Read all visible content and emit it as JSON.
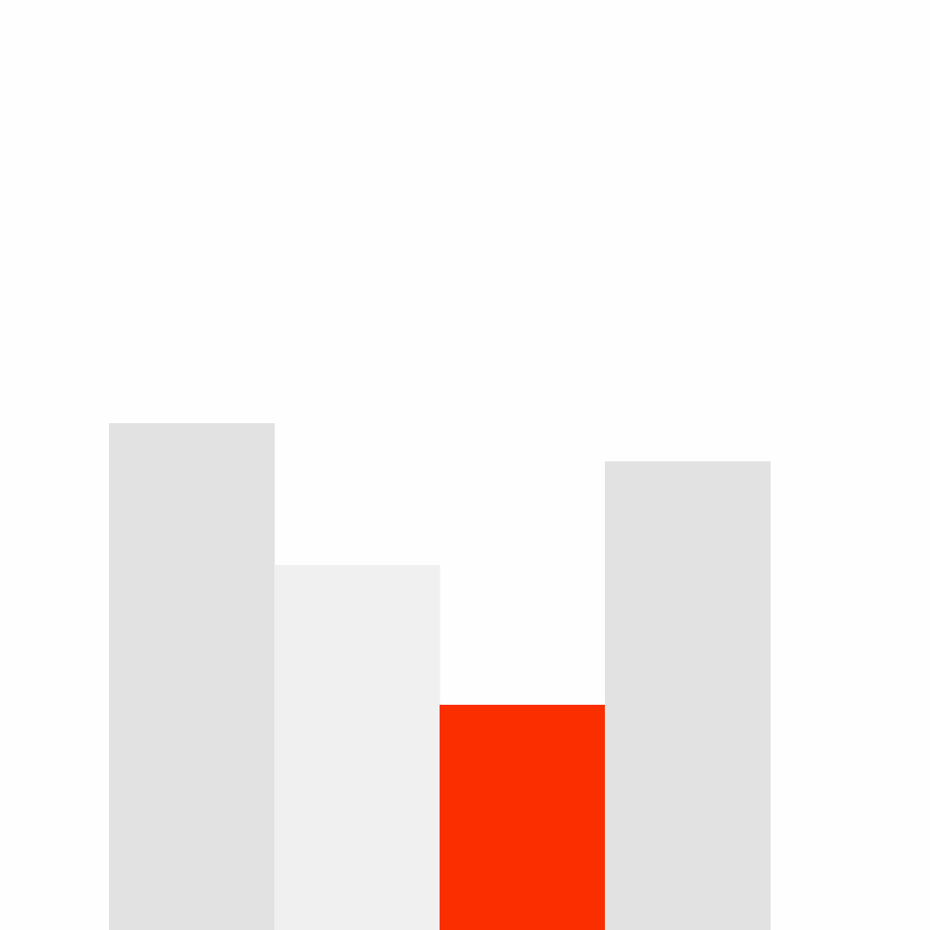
{
  "chart_data": {
    "type": "bar",
    "categories": [
      "",
      "",
      "",
      ""
    ],
    "values": [
      558,
      402,
      248,
      516
    ],
    "ylim": [
      0,
      1024
    ],
    "colors": [
      "#e2e2e2",
      "#f0f0f0",
      "#fb2e00",
      "#e2e2e2"
    ],
    "highlight_index": 2,
    "grid": false,
    "legend": "none"
  },
  "colors": {
    "background": "#fefefe",
    "accent": "#fb2e00",
    "bar_default": "#e2e2e2",
    "bar_light": "#f0f0f0"
  }
}
